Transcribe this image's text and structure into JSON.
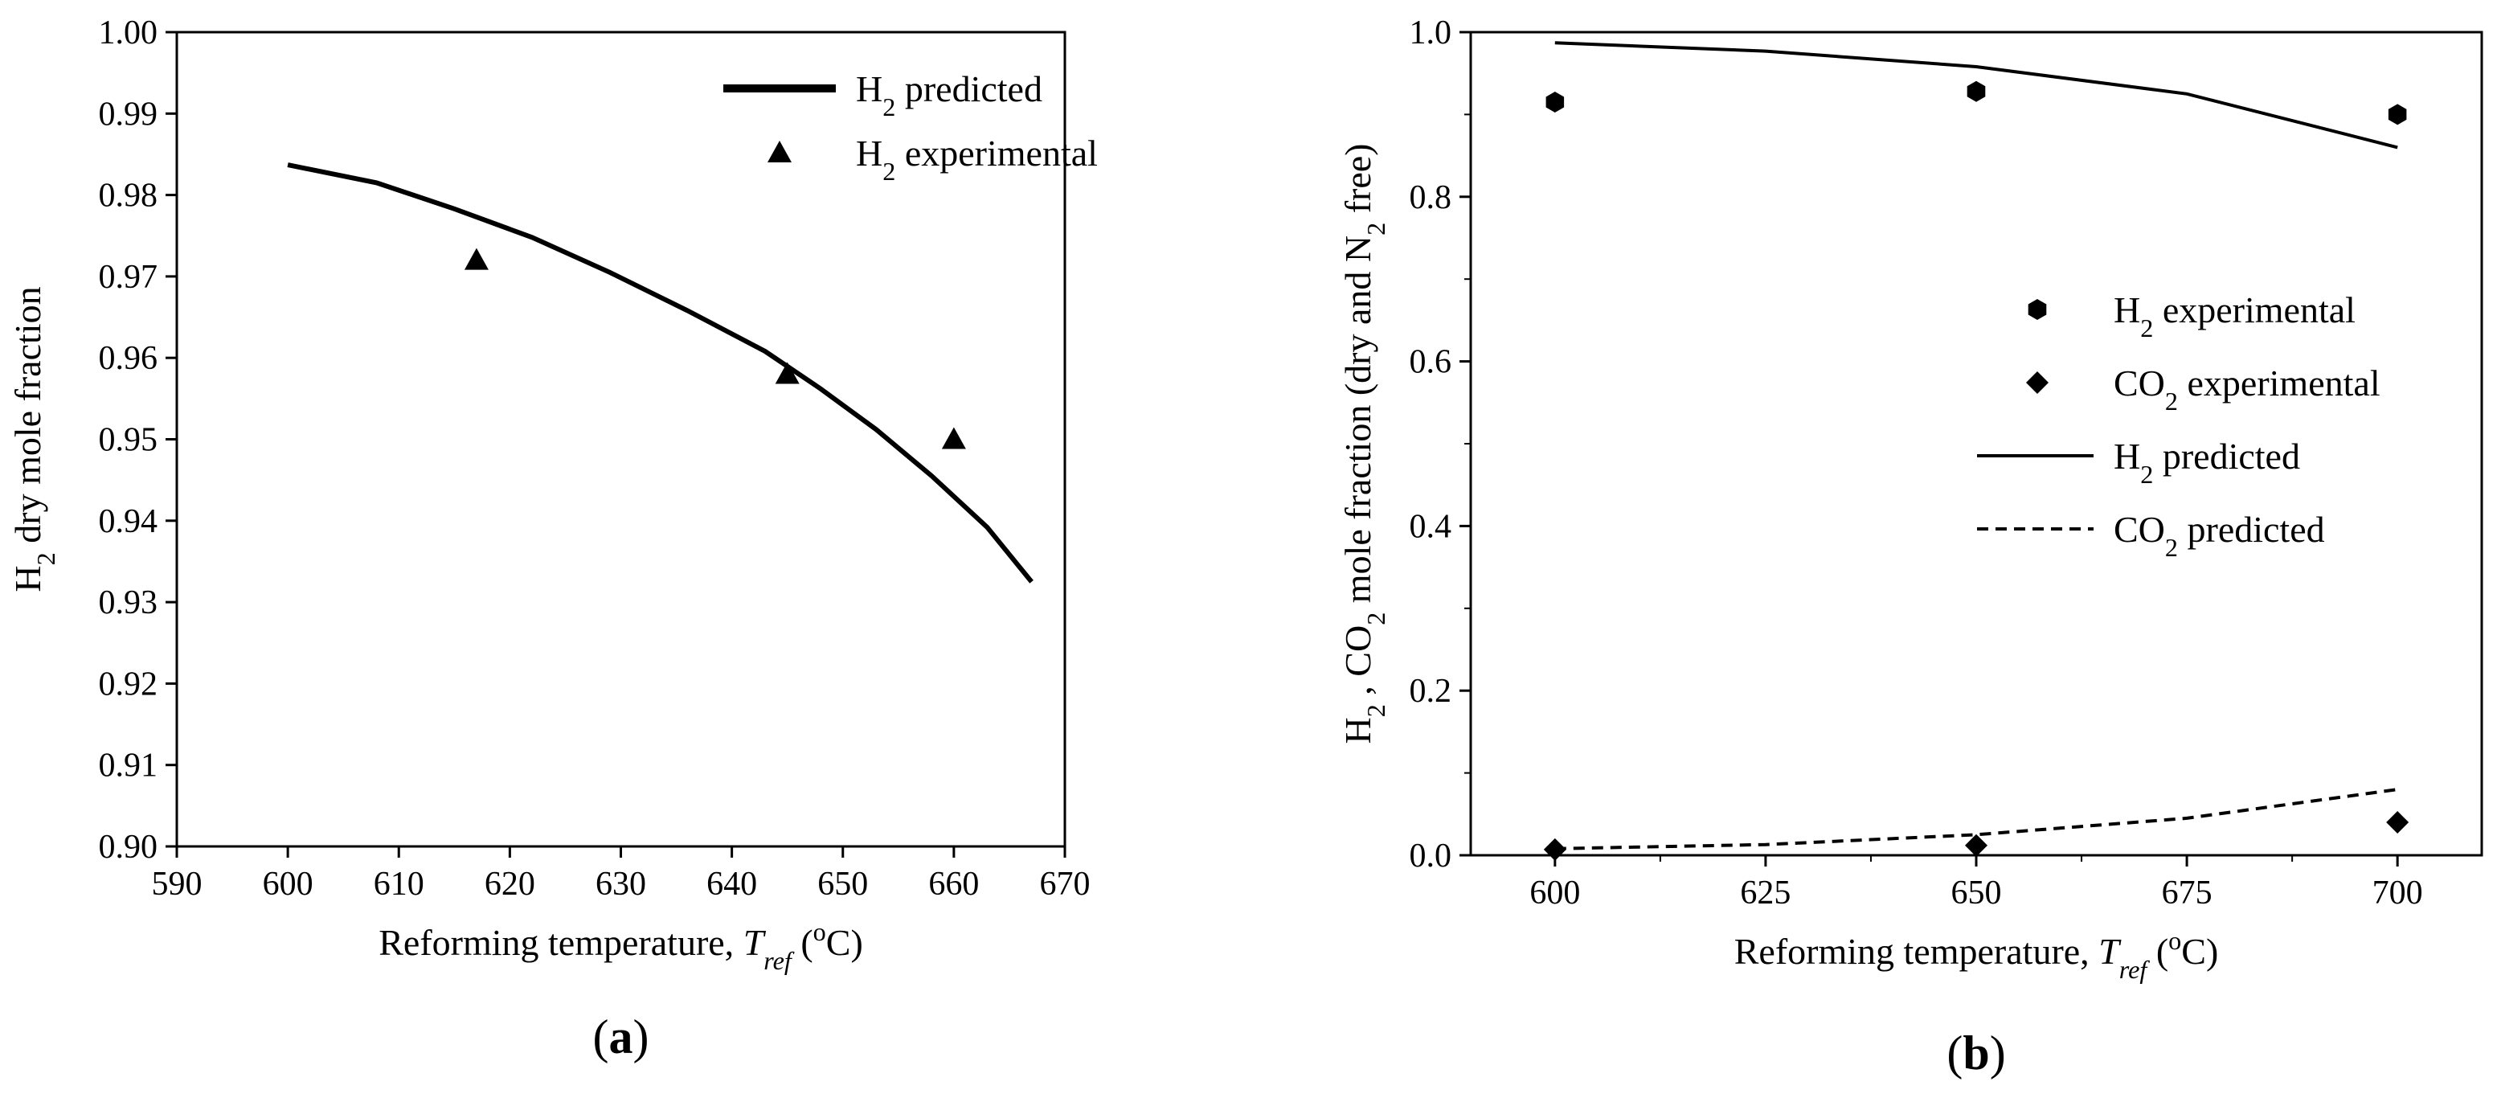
{
  "chart_data": [
    {
      "type": "line",
      "panel_label": "a",
      "xlabel": {
        "main": "Reforming temperature, ",
        "var": "T",
        "sub": "ref",
        "unit_open": " (",
        "unit_sup": "o",
        "unit_close": "C)"
      },
      "ylabel": {
        "base": "H",
        "sub": "2",
        "rest": " dry mole fraction"
      },
      "xlim": [
        590,
        670
      ],
      "ylim": [
        0.9,
        1.0
      ],
      "xticks": [
        590,
        600,
        610,
        620,
        630,
        640,
        650,
        660,
        670
      ],
      "xtick_labels": [
        "590",
        "600",
        "610",
        "620",
        "630",
        "640",
        "650",
        "660",
        "670"
      ],
      "yticks": [
        0.9,
        0.91,
        0.92,
        0.93,
        0.94,
        0.95,
        0.96,
        0.97,
        0.98,
        0.99,
        1.0
      ],
      "ytick_labels": [
        "0.90",
        "0.91",
        "0.92",
        "0.93",
        "0.94",
        "0.95",
        "0.96",
        "0.97",
        "0.98",
        "0.99",
        "1.00"
      ],
      "series": [
        {
          "name": "H2 predicted",
          "legend": {
            "base": "H",
            "sub": "2",
            "rest": " predicted"
          },
          "kind": "line",
          "style": "solid-thick",
          "x": [
            600,
            608,
            615,
            622,
            629,
            636,
            643,
            648,
            653,
            658,
            663,
            667
          ],
          "y": [
            0.9837,
            0.9815,
            0.9783,
            0.9748,
            0.9705,
            0.9658,
            0.9608,
            0.9562,
            0.9512,
            0.9455,
            0.9392,
            0.9325
          ]
        },
        {
          "name": "H2 experimental",
          "legend": {
            "base": "H",
            "sub": "2",
            "rest": " experimental"
          },
          "kind": "scatter",
          "marker": "triangle",
          "x": [
            617,
            645,
            660
          ],
          "y": [
            0.972,
            0.958,
            0.95
          ]
        }
      ]
    },
    {
      "type": "line",
      "panel_label": "b",
      "xlabel": {
        "main": "Reforming temperature, ",
        "var": "T",
        "sub": "ref",
        "unit_open": " (",
        "unit_sup": "o",
        "unit_close": "C)"
      },
      "ylabel": {
        "p1": "H",
        "s1": "2",
        "p2": " , CO",
        "s2": "2",
        "p3": "  mole fraction (dry and N",
        "s3": "2",
        "p4": " free)"
      },
      "xlim": [
        590,
        710
      ],
      "ylim": [
        0.0,
        1.0
      ],
      "xticks": [
        600,
        625,
        650,
        675,
        700
      ],
      "xtick_labels": [
        "600",
        "625",
        "650",
        "675",
        "700"
      ],
      "yticks": [
        0.0,
        0.2,
        0.4,
        0.6,
        0.8,
        1.0
      ],
      "ytick_labels": [
        "0.0",
        "0.2",
        "0.4",
        "0.6",
        "0.8",
        "1.0"
      ],
      "series": [
        {
          "name": "H2 experimental",
          "legend": {
            "base": "H",
            "sub": "2",
            "rest": "    experimental"
          },
          "kind": "scatter",
          "marker": "hexagon",
          "x": [
            600,
            650,
            700
          ],
          "y": [
            0.915,
            0.928,
            0.9
          ]
        },
        {
          "name": "CO2 experimental",
          "legend": {
            "base": "CO",
            "sub": "2",
            "rest": " experimental"
          },
          "kind": "scatter",
          "marker": "diamond",
          "x": [
            600,
            650,
            700
          ],
          "y": [
            0.007,
            0.012,
            0.04
          ]
        },
        {
          "name": "H2 predicted",
          "legend": {
            "base": "H",
            "sub": "2",
            "rest": "    predicted"
          },
          "kind": "line",
          "style": "solid",
          "x": [
            600,
            625,
            650,
            675,
            700
          ],
          "y": [
            0.987,
            0.977,
            0.958,
            0.925,
            0.86
          ]
        },
        {
          "name": "CO2 predicted",
          "legend": {
            "base": "CO",
            "sub": "2",
            "rest": " predicted"
          },
          "kind": "line",
          "style": "dashed",
          "x": [
            600,
            625,
            650,
            675,
            700
          ],
          "y": [
            0.008,
            0.013,
            0.025,
            0.045,
            0.08
          ]
        }
      ]
    }
  ]
}
